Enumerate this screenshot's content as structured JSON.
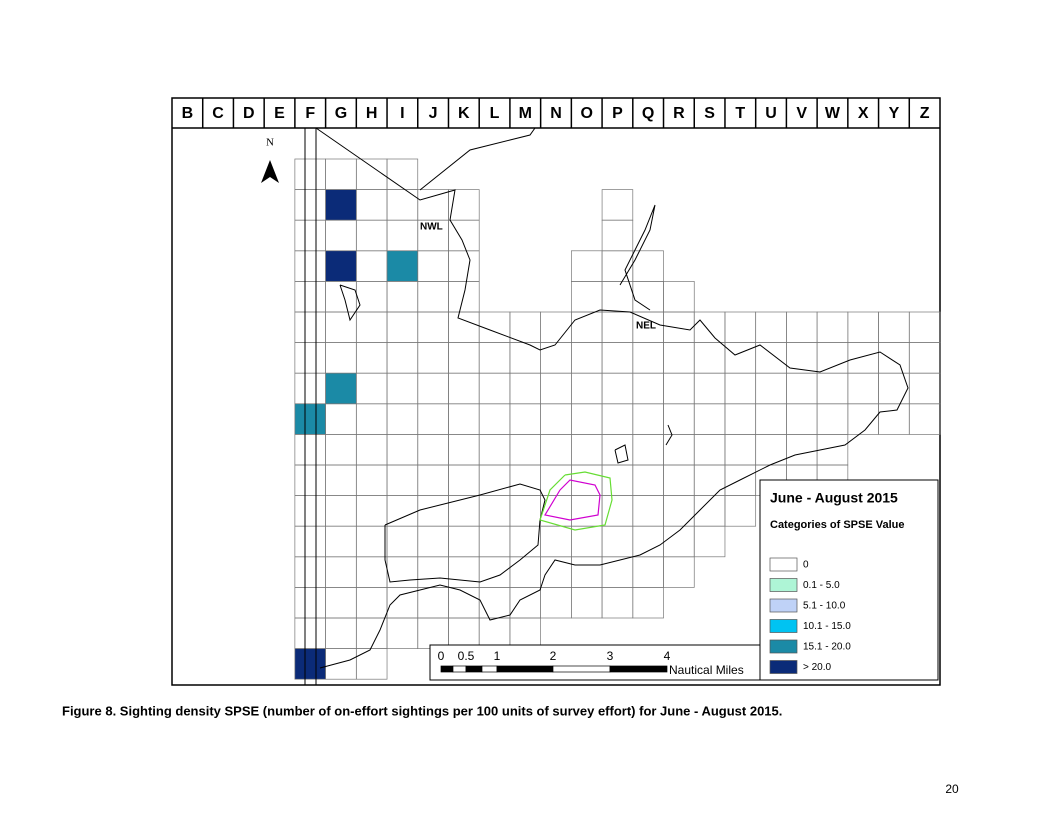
{
  "map": {
    "columns": [
      "B",
      "C",
      "D",
      "E",
      "F",
      "G",
      "H",
      "I",
      "J",
      "K",
      "L",
      "M",
      "N",
      "O",
      "P",
      "Q",
      "R",
      "S",
      "T",
      "U",
      "V",
      "W",
      "X",
      "Y",
      "Z"
    ],
    "north": "N",
    "places": [
      "NWL",
      "NEL"
    ],
    "legend": {
      "title": "June - August 2015",
      "subtitle": "Categories of SPSE Value",
      "categories": [
        {
          "label": "0",
          "color": "#ffffff"
        },
        {
          "label": "0.1 - 5.0",
          "color": "#aef5d6"
        },
        {
          "label": "5.1 - 10.0",
          "color": "#bfd2f7"
        },
        {
          "label": "10.1 - 15.0",
          "color": "#00c3f2"
        },
        {
          "label": "15.1 - 20.0",
          "color": "#1b8aa6"
        },
        {
          "label": "> 20.0",
          "color": "#0b2b78"
        }
      ]
    },
    "scale": {
      "ticks": [
        "0",
        "0.5",
        "1",
        "2",
        "3",
        "4"
      ],
      "unit": "Nautical Miles"
    }
  },
  "caption": "Figure 8. Sighting density SPSE (number of on-effort sightings per 100 units of survey effort) for June - August 2015.",
  "page_number": "20"
}
